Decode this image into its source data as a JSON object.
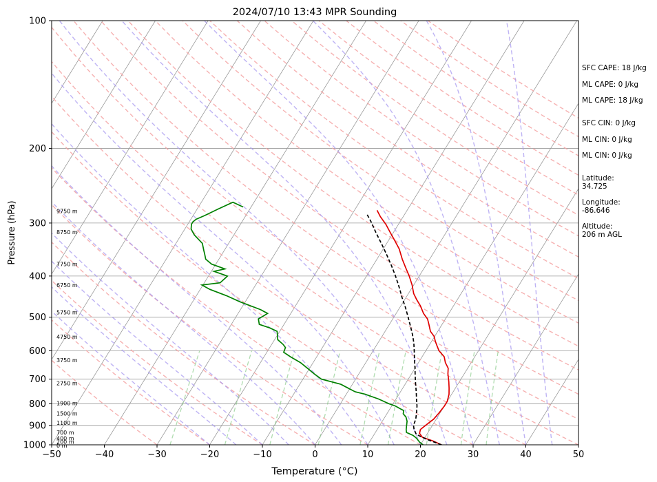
{
  "chart_data": {
    "type": "line",
    "title": "2024/07/10 13:43 MPR Sounding",
    "xlabel": "Temperature (°C)",
    "ylabel": "Pressure (hPa)",
    "x_range": [
      -50,
      50
    ],
    "y_range": [
      1000,
      100
    ],
    "y_scale": "log",
    "grid": true,
    "x_ticks": [
      -50,
      -40,
      -30,
      -20,
      -10,
      0,
      10,
      20,
      30,
      40,
      50
    ],
    "y_ticks": [
      100,
      200,
      300,
      400,
      500,
      600,
      700,
      800,
      900,
      1000
    ],
    "series": [
      {
        "color": "#e00000",
        "dashed": false,
        "points": [
          [
            24,
            1000
          ],
          [
            22,
            980
          ],
          [
            19.5,
            960
          ],
          [
            18.5,
            940
          ],
          [
            18.2,
            920
          ],
          [
            18.7,
            900
          ],
          [
            19.5,
            870
          ],
          [
            19.8,
            840
          ],
          [
            20,
            810
          ],
          [
            20,
            790
          ],
          [
            19.5,
            760
          ],
          [
            18.8,
            735
          ],
          [
            18,
            710
          ],
          [
            16.9,
            680
          ],
          [
            16.3,
            660
          ],
          [
            15.1,
            640
          ],
          [
            14.2,
            620
          ],
          [
            12.5,
            600
          ],
          [
            11.6,
            585
          ],
          [
            10.7,
            570
          ],
          [
            9.9,
            555
          ],
          [
            8.6,
            540
          ],
          [
            7.5,
            520
          ],
          [
            6.6,
            505
          ],
          [
            5.2,
            490
          ],
          [
            3.7,
            470
          ],
          [
            2.3,
            455
          ],
          [
            1,
            440
          ],
          [
            -0.3,
            420
          ],
          [
            -1.9,
            400
          ],
          [
            -3.3,
            385
          ],
          [
            -5.2,
            365
          ],
          [
            -7,
            345
          ],
          [
            -8.8,
            330
          ],
          [
            -10.7,
            315
          ],
          [
            -12.4,
            302
          ],
          [
            -14.3,
            290
          ],
          [
            -15.7,
            280
          ]
        ]
      },
      {
        "color": "#000000",
        "dashed": true,
        "points": [
          [
            24,
            1000
          ],
          [
            20.5,
            970
          ],
          [
            18,
            945
          ],
          [
            17,
            920
          ],
          [
            16.4,
            900
          ],
          [
            16.1,
            870
          ],
          [
            15.5,
            840
          ],
          [
            14.8,
            810
          ],
          [
            13.9,
            780
          ],
          [
            13,
            750
          ],
          [
            12,
            720
          ],
          [
            11,
            690
          ],
          [
            10,
            660
          ],
          [
            8.9,
            630
          ],
          [
            7.8,
            600
          ],
          [
            6.8,
            575
          ],
          [
            5.6,
            550
          ],
          [
            4.2,
            525
          ],
          [
            2.7,
            500
          ],
          [
            1.1,
            475
          ],
          [
            -0.7,
            450
          ],
          [
            -2.5,
            425
          ],
          [
            -4.5,
            400
          ],
          [
            -6.5,
            378
          ],
          [
            -8.6,
            357
          ],
          [
            -10.9,
            336
          ],
          [
            -13.3,
            316
          ],
          [
            -15.5,
            298
          ],
          [
            -17.3,
            285
          ]
        ]
      },
      {
        "color": "#008000",
        "dashed": false,
        "points": [
          [
            20.5,
            1000
          ],
          [
            19.5,
            985
          ],
          [
            18.5,
            965
          ],
          [
            17.5,
            950
          ],
          [
            15.9,
            935
          ],
          [
            15.5,
            920
          ],
          [
            15.1,
            900
          ],
          [
            14.7,
            880
          ],
          [
            14,
            860
          ],
          [
            13.1,
            845
          ],
          [
            12.8,
            830
          ],
          [
            11.7,
            820
          ],
          [
            10.7,
            810
          ],
          [
            9.2,
            800
          ],
          [
            6.7,
            780
          ],
          [
            3.6,
            760
          ],
          [
            1.4,
            750
          ],
          [
            -2.2,
            720
          ],
          [
            -6.5,
            700
          ],
          [
            -8.5,
            680
          ],
          [
            -10.4,
            660
          ],
          [
            -12.4,
            640
          ],
          [
            -15,
            620
          ],
          [
            -16.8,
            605
          ],
          [
            -17,
            590
          ],
          [
            -17.8,
            580
          ],
          [
            -19.4,
            565
          ],
          [
            -20.5,
            540
          ],
          [
            -22.3,
            530
          ],
          [
            -24.7,
            520
          ],
          [
            -25.5,
            505
          ],
          [
            -24.4,
            490
          ],
          [
            -26.2,
            480
          ],
          [
            -31,
            460
          ],
          [
            -34.3,
            445
          ],
          [
            -38.2,
            430
          ],
          [
            -40.2,
            420
          ],
          [
            -37,
            415
          ],
          [
            -36.4,
            400
          ],
          [
            -39.5,
            390
          ],
          [
            -37.7,
            385
          ],
          [
            -40.8,
            375
          ],
          [
            -42.5,
            365
          ],
          [
            -43.3,
            355
          ],
          [
            -43.9,
            348
          ],
          [
            -45,
            335
          ],
          [
            -47.5,
            320
          ],
          [
            -48.8,
            310
          ],
          [
            -49.3,
            302
          ],
          [
            -49.3,
            298
          ],
          [
            -49,
            294
          ],
          [
            -47.8,
            288
          ],
          [
            -46,
            278
          ],
          [
            -44,
            268
          ],
          [
            -41.5,
            275
          ]
        ]
      }
    ],
    "height_labels": [
      {
        "text": "9750 m",
        "p": 281
      },
      {
        "text": "8750 m",
        "p": 315
      },
      {
        "text": "7750 m",
        "p": 375
      },
      {
        "text": "6750 m",
        "p": 420
      },
      {
        "text": "5750 m",
        "p": 487
      },
      {
        "text": "4750 m",
        "p": 556
      },
      {
        "text": "3750 m",
        "p": 632
      },
      {
        "text": "2750 m",
        "p": 715
      },
      {
        "text": "1900 m",
        "p": 797
      },
      {
        "text": "1500 m",
        "p": 844
      },
      {
        "text": "1100 m",
        "p": 888
      },
      {
        "text": "700 m",
        "p": 935
      },
      {
        "text": "400 m",
        "p": 966
      },
      {
        "text": "200 m",
        "p": 983
      },
      {
        "text": "0 m",
        "p": 1003
      }
    ]
  },
  "stats": {
    "sfc_cape": "SFC CAPE: 18 J/kg",
    "ml_cape_1": "ML CAPE: 0 J/kg",
    "ml_cape_2": "ML CAPE: 18 J/kg",
    "sfc_cin": "SFC CIN: 0 J/kg",
    "ml_cin_1": "ML CIN: 0 J/kg",
    "ml_cin_2": "ML CIN: 0 J/kg",
    "latitude": "Latitude:\n34.725",
    "longitude": "Longitude:\n-86.646",
    "altitude": "Altitude:\n206 m AGL"
  }
}
